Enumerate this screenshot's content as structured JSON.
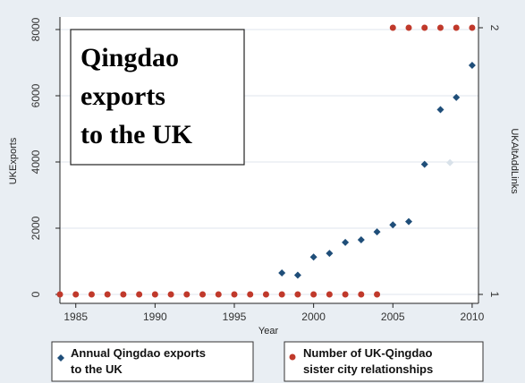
{
  "colors": {
    "background": "#e9eef3",
    "exports_series": "#1f4e79",
    "sister_series": "#c0392b",
    "faded_marker": "#d9e2ea"
  },
  "chart_data": {
    "type": "scatter",
    "title": "",
    "xlabel": "Year",
    "ylabel_left": "UKExports",
    "ylabel_right": "UKAltAddLinks",
    "xlim": [
      1984,
      2010.4
    ],
    "ylim_left": [
      0,
      8000
    ],
    "ylim_right": [
      1,
      2
    ],
    "x_ticks": [
      1985,
      1990,
      1995,
      2000,
      2005,
      2010
    ],
    "y_left_ticks": [
      0,
      2000,
      4000,
      6000,
      8000
    ],
    "y_right_ticks": [
      1,
      2
    ],
    "grid": "horizontal",
    "callout_lines": [
      "Qingdao",
      "exports",
      "to the UK"
    ],
    "legend": [
      {
        "text_lines": [
          "Annual Qingdao exports",
          "to the UK"
        ]
      },
      {
        "text_lines": [
          "Number of UK-Qingdao",
          "sister city relationships"
        ]
      }
    ],
    "legend_position": "bottom",
    "series": [
      {
        "axis": "left",
        "x": [
          1998,
          1999,
          2000,
          2001,
          2002,
          2003,
          2004,
          2005,
          2006,
          2007,
          2008,
          2009,
          2010
        ],
        "y": [
          650,
          580,
          1130,
          1240,
          1570,
          1650,
          1890,
          2100,
          2200,
          3930,
          5580,
          5950,
          6920
        ]
      },
      {
        "axis": "right",
        "x": [
          1984,
          1985,
          1986,
          1987,
          1988,
          1989,
          1990,
          1991,
          1992,
          1993,
          1994,
          1995,
          1996,
          1997,
          1998,
          1999,
          2000,
          2001,
          2002,
          2003,
          2004,
          2005,
          2006,
          2007,
          2008,
          2009,
          2010
        ],
        "y": [
          1,
          1,
          1,
          1,
          1,
          1,
          1,
          1,
          1,
          1,
          1,
          1,
          1,
          1,
          1,
          1,
          1,
          1,
          1,
          1,
          1,
          2,
          2,
          2,
          2,
          2,
          2
        ]
      }
    ],
    "faded_points": [
      {
        "axis": "left",
        "x": 2008.6,
        "y": 3980
      }
    ]
  }
}
